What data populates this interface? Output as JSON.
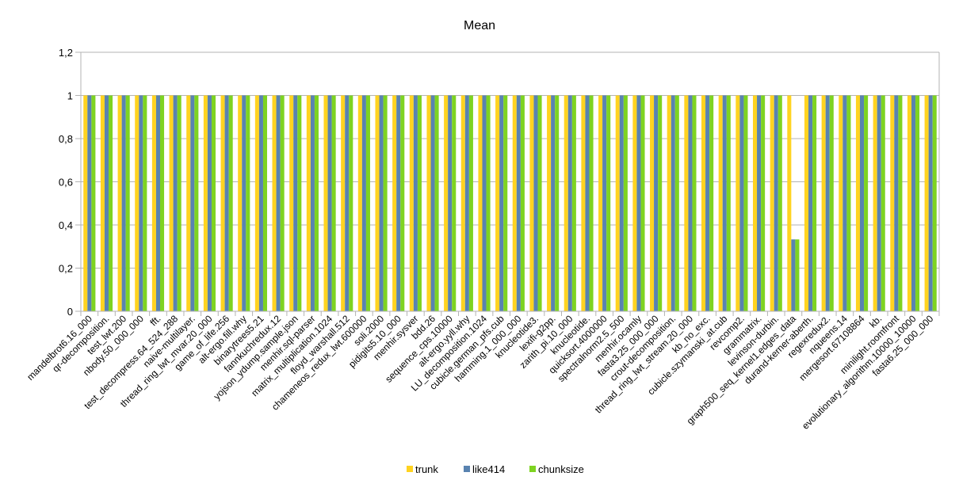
{
  "chart_data": {
    "type": "bar",
    "title": "Mean",
    "xlabel": "",
    "ylabel": "",
    "ylim": [
      0,
      1.2
    ],
    "yticks": [
      "0",
      "0,2",
      "0,4",
      "0,6",
      "0,8",
      "1",
      "1,2"
    ],
    "ytick_values": [
      0,
      0.2,
      0.4,
      0.6,
      0.8,
      1.0,
      1.2
    ],
    "grid": true,
    "legend_position": "bottom",
    "categories": [
      "mandelbrot6.16_000",
      "qr-decomposition.",
      "test_lwt.200",
      "nbody.50_000_000",
      "fft.",
      "test_decompress.64_524_288",
      "naive-multilayer.",
      "thread_ring_lwt_mvar.20_000",
      "game_of_life.256",
      "alt-ergo.fill.why",
      "binarytrees5.21",
      "fannkuchredux.12",
      "yojson_ydump.sample.json",
      "menhir.sql-parser",
      "matrix_multiplication.1024",
      "floyd_warshall.512",
      "chameneos_redux_lwt.600000",
      "soli.2000",
      "pidigits5.10_000",
      "menhir.sysver",
      "bdd.26",
      "sequence_cps.10000",
      "alt-ergo.yyll.why",
      "LU_decomposition.1024",
      "cubicle.german_pfs.cub",
      "hamming.1_000_000",
      "knucleotide3.",
      "lexifi-g2pp.",
      "zarith_pi.10_000",
      "knucleotide.",
      "quicksort.4000000",
      "spectralnorm2.5_500",
      "menhir.ocamly",
      "fasta3.25_000_000",
      "crout-decomposition.",
      "thread_ring_lwt_stream.20_000",
      "kb_no_exc.",
      "cubicle.szymanski_at.cub",
      "revcomp2.",
      "grammatrix.",
      "levinson-durbin.",
      "graph500_seq_kernel1.edges_data",
      "durand-kerner-aberth.",
      "regexredux2.",
      "nqueens.14",
      "mergesort.67108864",
      "kb.",
      "minilight.roomfront",
      "evolutionary_algorithm.10000_10000",
      "fasta6.25_000_000"
    ],
    "series": [
      {
        "name": "trunk",
        "color": "#ffd320",
        "values": [
          1,
          1,
          1,
          1,
          1,
          1,
          1,
          1,
          1,
          1,
          1,
          1,
          1,
          1,
          1,
          1,
          1,
          1,
          1,
          1,
          1,
          1,
          1,
          1,
          1,
          1,
          1,
          1,
          1,
          1,
          1,
          1,
          1,
          1,
          1,
          1,
          1,
          1,
          1,
          1,
          1,
          1,
          1,
          1,
          1,
          1,
          1,
          1,
          1,
          1
        ]
      },
      {
        "name": "like414",
        "color": "#5983b0",
        "values": [
          1,
          1,
          1,
          1,
          1,
          1,
          1,
          1,
          1,
          1,
          1,
          1,
          1,
          1,
          1,
          1,
          1,
          1,
          1,
          1,
          1,
          1,
          1,
          1,
          1,
          1,
          1,
          1,
          1,
          1,
          1,
          1,
          1,
          1,
          1,
          1,
          1,
          1,
          1,
          1,
          1,
          0.333,
          1,
          1,
          1,
          1,
          1,
          1,
          1,
          1
        ]
      },
      {
        "name": "chunksize",
        "color": "#7ed321",
        "values": [
          1,
          1,
          1,
          1,
          1,
          1,
          1,
          1,
          1,
          1,
          1,
          1,
          1,
          1,
          1,
          1,
          1,
          1,
          1,
          1,
          1,
          1,
          1,
          1,
          1,
          1,
          1,
          1,
          1,
          1,
          1,
          1,
          1,
          1,
          1,
          1,
          1,
          1,
          1,
          1,
          1,
          0.333,
          1,
          1,
          1,
          1,
          1,
          1,
          1,
          1
        ]
      }
    ]
  }
}
